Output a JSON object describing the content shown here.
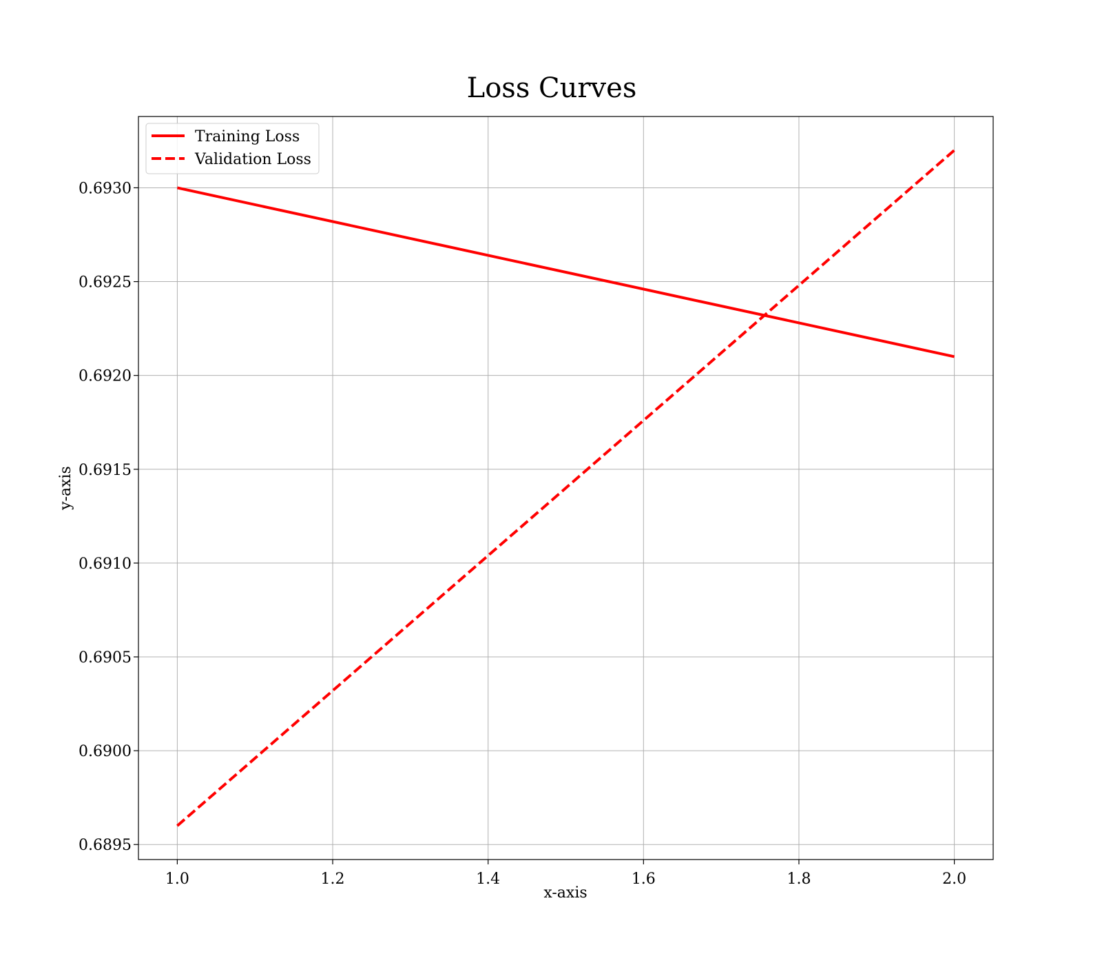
{
  "chart_data": {
    "type": "line",
    "title": "Loss Curves",
    "xlabel": "x-axis",
    "ylabel": "y-axis",
    "xlim": [
      0.95,
      2.05
    ],
    "ylim": [
      0.68942,
      0.69338
    ],
    "xticks": [
      1.0,
      1.2,
      1.4,
      1.6,
      1.8,
      2.0
    ],
    "xtick_labels": [
      "1.0",
      "1.2",
      "1.4",
      "1.6",
      "1.8",
      "2.0"
    ],
    "yticks": [
      0.6895,
      0.69,
      0.6905,
      0.691,
      0.6915,
      0.692,
      0.6925,
      0.693
    ],
    "ytick_labels": [
      "0.6895",
      "0.6900",
      "0.6905",
      "0.6910",
      "0.6915",
      "0.6920",
      "0.6925",
      "0.6930"
    ],
    "grid": true,
    "legend_position": "top-left",
    "series": [
      {
        "name": "Training Loss",
        "x": [
          1,
          2
        ],
        "y": [
          0.693,
          0.6921
        ],
        "color": "#ff0000",
        "style": "solid"
      },
      {
        "name": "Validation Loss",
        "x": [
          1,
          2
        ],
        "y": [
          0.6896,
          0.6932
        ],
        "color": "#ff0000",
        "style": "dashed"
      }
    ]
  }
}
